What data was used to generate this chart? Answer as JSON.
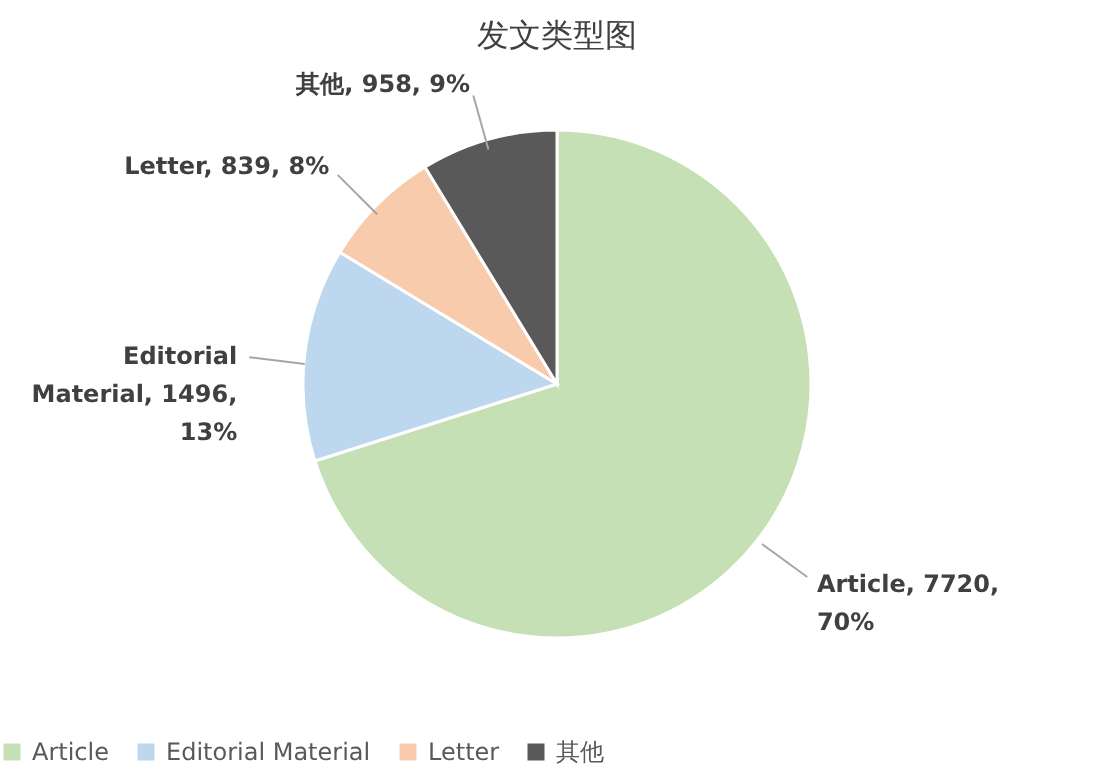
{
  "chart_data": {
    "type": "pie",
    "title": "发文类型图",
    "categories": [
      "Article",
      "Editorial Material",
      "Letter",
      "其他"
    ],
    "values": [
      7720,
      1496,
      839,
      958
    ],
    "colors": [
      "#c5e0b4",
      "#bdd7ee",
      "#f8cbad",
      "#595959"
    ],
    "value_labels": [
      "Article, 7720, 70%",
      "Editorial Material, 1496, 13%",
      "Letter, 839, 8%",
      "其他, 958, 9%"
    ],
    "legend": "bottom"
  }
}
